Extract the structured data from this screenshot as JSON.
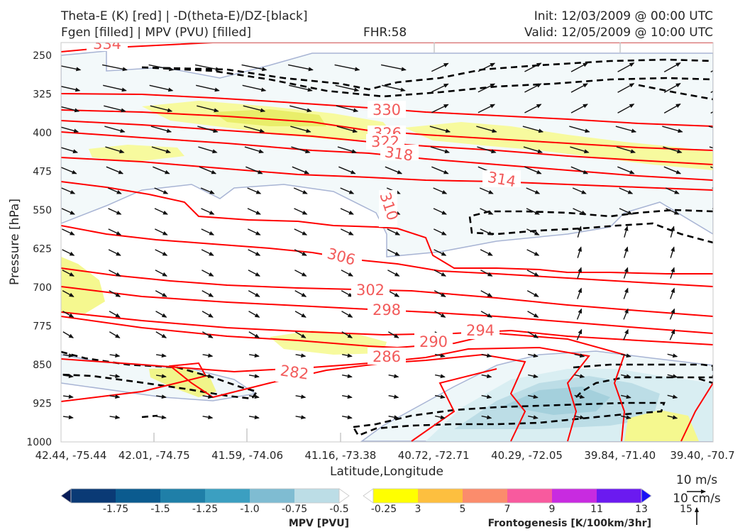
{
  "header": {
    "title_line1": "Theta-E (K) [red] | -D(theta-E)/DZ-[black]",
    "title_line2": "Fgen [filled] | MPV (PVU) [filled]",
    "fhr": "FHR:58",
    "init": "Init: 12/03/2009 @ 00:00 UTC",
    "valid": "Valid: 12/05/2009 @ 10:00 UTC"
  },
  "chart_data": {
    "type": "cross-section",
    "xlabel": "Latitude,Longitude",
    "ylabel": "Pressure [hPa]",
    "y_ticks": [
      "250",
      "325",
      "400",
      "475",
      "550",
      "625",
      "700",
      "775",
      "850",
      "925",
      "1000"
    ],
    "y_range_hpa": [
      1000,
      225
    ],
    "x_ticks": [
      "42.44, -75.44",
      "42.01, -74.75",
      "41.59, -74.06",
      "41.16, -73.38",
      "40.72, -72.71",
      "40.29, -72.05",
      "39.84, -71.40",
      "39.40, -70.7"
    ],
    "theta_e_labels": [
      "334",
      "330",
      "326",
      "322",
      "318",
      "314",
      "310",
      "306",
      "302",
      "298",
      "294",
      "290",
      "286",
      "282"
    ],
    "theta_e_color": "#ff0000",
    "theta_e_label_color": "#f25a5a",
    "ddz_contour_color": "#000000",
    "mpv_colorbar": {
      "label": "MPV [PVU]",
      "ticks": [
        "-1.75",
        "-1.5",
        "-1.25",
        "-1.0",
        "-0.75",
        "-0.5",
        "-0.25"
      ],
      "colors": [
        "#081d58",
        "#0a3a75",
        "#0b5b8f",
        "#1f7fa8",
        "#3b9fc1",
        "#7fbcd2",
        "#bcdde6",
        "#ffffff"
      ]
    },
    "fgen_colorbar": {
      "label": "Frontogenesis [K/100km/3hr]",
      "ticks": [
        "3",
        "5",
        "7",
        "9",
        "11",
        "13",
        "15"
      ],
      "colors": [
        "#ffffff",
        "#ffff00",
        "#fdbf3f",
        "#fb8c6c",
        "#f85a9e",
        "#c82be0",
        "#6b1af0",
        "#1a12f5"
      ]
    },
    "wind_key": {
      "horizontal": "10 m/s",
      "vertical": "10 cm/s"
    },
    "wind_vector_color": "#111111"
  }
}
